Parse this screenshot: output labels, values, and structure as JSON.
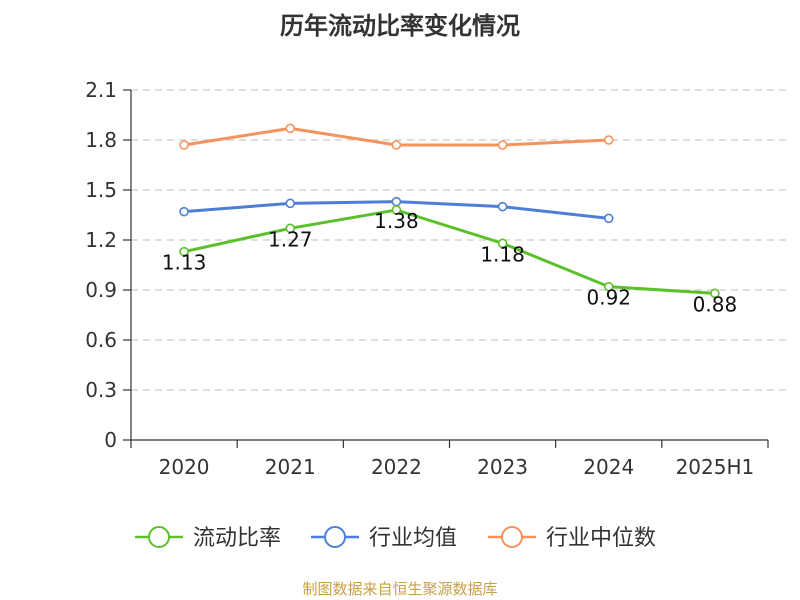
{
  "chart_data": {
    "type": "line",
    "title": "历年流动比率变化情况",
    "categories": [
      "2020",
      "2021",
      "2022",
      "2023",
      "2024",
      "2025H1"
    ],
    "ylim": [
      0,
      2.1
    ],
    "yticks": [
      "0",
      "0.3",
      "0.6",
      "0.9",
      "1.2",
      "1.5",
      "1.8",
      "2.1"
    ],
    "grid": true,
    "legend_position": "bottom",
    "series": [
      {
        "name": "流动比率",
        "color": "#5cc02c",
        "values": [
          1.13,
          1.27,
          1.38,
          1.18,
          0.92,
          0.88
        ],
        "labels": [
          "1.13",
          "1.27",
          "1.38",
          "1.18",
          "0.92",
          "0.88"
        ]
      },
      {
        "name": "行业均值",
        "color": "#4e7fd6",
        "values": [
          1.37,
          1.42,
          1.43,
          1.4,
          1.33,
          null
        ]
      },
      {
        "name": "行业中位数",
        "color": "#f4935c",
        "values": [
          1.77,
          1.87,
          1.77,
          1.77,
          1.8,
          null
        ]
      }
    ]
  },
  "source": "制图数据来自恒生聚源数据库"
}
